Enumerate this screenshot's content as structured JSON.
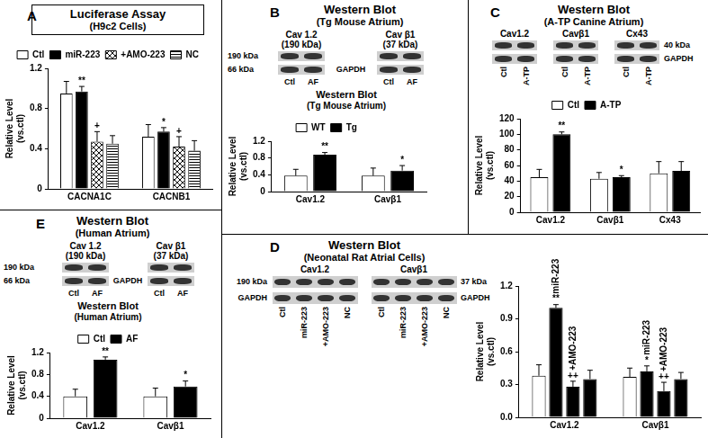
{
  "chart_data": [
    {
      "panel": "A",
      "type": "bar",
      "title": "Luciferase Assay",
      "subtitle": "(H9c2 Cells)",
      "y_label": [
        "Relative Level",
        "(vs.ctl)"
      ],
      "categories": [
        "CACNA1C",
        "CACNB1"
      ],
      "series": [
        {
          "name": "Ctl",
          "color": "#ffffff",
          "values": [
            0.95,
            0.52
          ],
          "errors": [
            0.12,
            0.12
          ]
        },
        {
          "name": "miR-223",
          "color": "#000000",
          "values": [
            0.97,
            0.57
          ],
          "errors": [
            0.05,
            0.04
          ],
          "significance": [
            [
              "**"
            ],
            [
              "*"
            ]
          ]
        },
        {
          "name": "+AMO-223",
          "color": "#000000",
          "marker": "crosshatch",
          "values": [
            0.47,
            0.42
          ],
          "errors": [
            0.1,
            0.1
          ],
          "significance": [
            [
              "+"
            ],
            [
              "+"
            ]
          ]
        },
        {
          "name": "NC",
          "color": "#000000",
          "marker": "hlines",
          "values": [
            0.45,
            0.38
          ],
          "errors": [
            0.08,
            0.1
          ]
        }
      ],
      "ylim": [
        0,
        1.2
      ],
      "yticks": [
        0,
        0.4,
        0.8,
        1.2
      ],
      "grid": false,
      "legend": "top"
    },
    {
      "panel": "B",
      "type": "bar",
      "title": "Western Blot",
      "subtitle": "(Tg Mouse Atrium)",
      "blot": {
        "title": "Western Blot",
        "subtitle": "(Tg Mouse Atrium)",
        "groups": [
          {
            "name": "Cav 1.2",
            "size": "(190 kDa)"
          },
          {
            "name": "Cav β1",
            "size": "(37 kDa)"
          }
        ],
        "size_labels": [
          "190 kDa",
          "66 kDa"
        ],
        "control": "GAPDH",
        "lanes": [
          "Ctl",
          "AF"
        ]
      },
      "y_label": [
        "Relative Level",
        "(vs.ctl)"
      ],
      "categories": [
        "Cav1.2",
        "Cavβ1"
      ],
      "series": [
        {
          "name": "WT",
          "color": "#ffffff",
          "values": [
            0.38,
            0.38
          ],
          "errors": [
            0.15,
            0.18
          ]
        },
        {
          "name": "Tg",
          "color": "#000000",
          "values": [
            0.88,
            0.5
          ],
          "errors": [
            0.05,
            0.12
          ],
          "significance": [
            [
              "**"
            ],
            [
              "*"
            ]
          ]
        }
      ],
      "ylim": [
        0,
        1.2
      ],
      "yticks": [
        0,
        0.4,
        0.8,
        1.2
      ],
      "grid": false,
      "legend": "top"
    },
    {
      "panel": "C",
      "type": "bar",
      "blot": {
        "title": "Western Blot",
        "subtitle": "(A-TP Canine Atrium)",
        "groups": [
          {
            "name": "Cav1.2"
          },
          {
            "name": "Cavβ1"
          },
          {
            "name": "Cx43"
          }
        ],
        "size_labels": [
          "40 kDa"
        ],
        "control": "GAPDH",
        "lanes": [
          "Ctl",
          "A-TP"
        ]
      },
      "y_label": [
        "Relative Level",
        "(vs.ctl)"
      ],
      "categories": [
        "Cav1.2",
        "Cavβ1",
        "Cx43"
      ],
      "series": [
        {
          "name": "Ctl",
          "color": "#ffffff",
          "values": [
            45,
            43,
            50
          ],
          "errors": [
            10,
            8,
            15
          ]
        },
        {
          "name": "A-TP",
          "color": "#000000",
          "values": [
            100,
            45,
            53
          ],
          "errors": [
            3,
            2,
            12
          ],
          "significance": [
            [
              "**"
            ],
            [
              "*"
            ],
            null
          ]
        }
      ],
      "ylim": [
        0,
        120
      ],
      "yticks": [
        0,
        20,
        40,
        60,
        80,
        100,
        120
      ],
      "grid": false,
      "legend": "top"
    },
    {
      "panel": "D",
      "type": "bar",
      "blot": {
        "title": "Western Blot",
        "subtitle": "(Neonatal Rat Atrial Cells)",
        "groups": [
          {
            "name": "Cav1.2"
          },
          {
            "name": "Cavβ1"
          }
        ],
        "size_labels": [
          "190 kDa",
          "37 kDa"
        ],
        "control": "GAPDH",
        "lanes": [
          "Ctl",
          "miR-223",
          "+AMO-223",
          "NC"
        ]
      },
      "y_label": [
        "Relative Level",
        "(vs.ctl)"
      ],
      "categories": [
        "Cav1.2",
        "Cavβ1"
      ],
      "series": [
        {
          "name": "Ctl",
          "color": "#ffffff",
          "values": [
            0.38,
            0.37
          ],
          "errors": [
            0.1,
            0.08
          ]
        },
        {
          "name": "miR-223",
          "color": "#000000",
          "values": [
            1.0,
            0.42
          ],
          "errors": [
            0.03,
            0.05
          ],
          "significance": [
            [
              "**",
              "miR-223"
            ],
            [
              "*",
              "miR-223"
            ]
          ]
        },
        {
          "name": "+AMO-223",
          "color": "#000000",
          "values": [
            0.28,
            0.24
          ],
          "errors": [
            0.05,
            0.08
          ],
          "significance": [
            [
              "++",
              "+AMO-223"
            ],
            [
              "++",
              "+AMO-223"
            ]
          ]
        },
        {
          "name": "NC",
          "color": "#000000",
          "values": [
            0.35,
            0.35
          ],
          "errors": [
            0.08,
            0.06
          ]
        }
      ],
      "ylim": [
        0,
        1.2
      ],
      "yticks": [
        {
          "value": 0,
          "label": "0.0"
        },
        0.3,
        0.6,
        0.9,
        1.2
      ],
      "grid": false
    },
    {
      "panel": "E",
      "type": "bar",
      "title": "Western Blot",
      "subtitle": "(Human Atrium)",
      "blot": {
        "title": "Western Blot",
        "subtitle": "(Human Atrium)",
        "groups": [
          {
            "name": "Cav 1.2",
            "size": "(190 kDa)"
          },
          {
            "name": "Cav β1",
            "size": "(37 kDa)"
          }
        ],
        "size_labels": [
          "190 kDa",
          "66 kDa"
        ],
        "control": "GAPDH",
        "lanes": [
          "Ctl",
          "AF"
        ]
      },
      "y_label": [
        "Relative Level",
        "(vs.ctl)"
      ],
      "categories": [
        "Cav1.2",
        "Cavβ1"
      ],
      "series": [
        {
          "name": "Ctl",
          "color": "#ffffff",
          "values": [
            0.4,
            0.4
          ],
          "errors": [
            0.13,
            0.15
          ]
        },
        {
          "name": "AF",
          "color": "#000000",
          "values": [
            1.07,
            0.58
          ],
          "errors": [
            0.05,
            0.1
          ],
          "significance": [
            [
              "**"
            ],
            [
              "*"
            ]
          ]
        }
      ],
      "ylim": [
        0,
        1.2
      ],
      "yticks": [
        0,
        0.4,
        0.8,
        1.2
      ],
      "grid": false,
      "legend": "top"
    }
  ]
}
